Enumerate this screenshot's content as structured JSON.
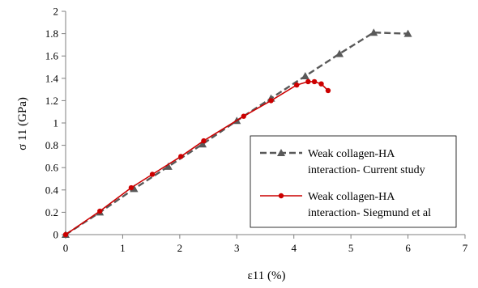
{
  "chart_data": {
    "type": "line",
    "title": "",
    "xlabel": "ε11 (%)",
    "ylabel": "σ 11 (GPa)",
    "xlim": [
      0,
      7
    ],
    "ylim": [
      0,
      2
    ],
    "xticks": [
      "0",
      "1",
      "2",
      "3",
      "4",
      "5",
      "6",
      "7"
    ],
    "yticks": [
      "0",
      "0.2",
      "0.4",
      "0.6",
      "0.8",
      "1",
      "1.2",
      "1.4",
      "1.6",
      "1.8",
      "2"
    ],
    "grid": false,
    "legend_position": "bottom-right",
    "series": [
      {
        "name_lines": [
          "Weak collagen-HA",
          "interaction- Current study"
        ],
        "color": "#595959",
        "line_style": "dashed",
        "marker": "triangle",
        "points": [
          [
            0,
            0
          ],
          [
            0.6,
            0.2
          ],
          [
            1.2,
            0.41
          ],
          [
            1.8,
            0.61
          ],
          [
            2.4,
            0.81
          ],
          [
            3.0,
            1.02
          ],
          [
            3.6,
            1.22
          ],
          [
            4.2,
            1.42
          ],
          [
            4.8,
            1.62
          ],
          [
            5.4,
            1.81
          ],
          [
            6.0,
            1.8
          ]
        ]
      },
      {
        "name_lines": [
          "Weak collagen-HA",
          "interaction- Siegmund et al"
        ],
        "color": "#cc0000",
        "line_style": "solid",
        "marker": "circle",
        "points": [
          [
            0,
            0
          ],
          [
            0.6,
            0.21
          ],
          [
            1.15,
            0.42
          ],
          [
            1.52,
            0.54
          ],
          [
            2.02,
            0.7
          ],
          [
            2.42,
            0.84
          ],
          [
            3.12,
            1.06
          ],
          [
            3.6,
            1.2
          ],
          [
            4.05,
            1.34
          ],
          [
            4.25,
            1.37
          ],
          [
            4.36,
            1.37
          ],
          [
            4.48,
            1.35
          ],
          [
            4.6,
            1.29
          ]
        ]
      }
    ]
  }
}
